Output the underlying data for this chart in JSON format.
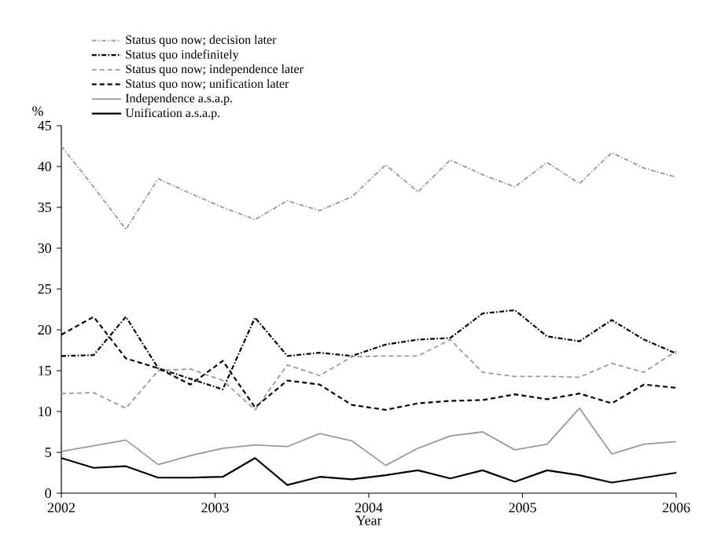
{
  "chart_data": {
    "type": "line",
    "xlabel": "Year",
    "ylabel": "%",
    "x": [
      2002,
      2002.21,
      2002.42,
      2002.63,
      2002.84,
      2003.05,
      2003.26,
      2003.47,
      2003.68,
      2003.89,
      2004.11,
      2004.32,
      2004.53,
      2004.74,
      2004.95,
      2005.16,
      2005.37,
      2005.58,
      2005.79,
      2006
    ],
    "xlim": [
      2002,
      2006
    ],
    "xticks": [
      2002,
      2003,
      2004,
      2005,
      2006
    ],
    "ylim": [
      0,
      45
    ],
    "yticks": [
      0,
      5,
      10,
      15,
      20,
      25,
      30,
      35,
      40,
      45
    ],
    "grid": false,
    "legend": "top left",
    "marker": "none",
    "series": [
      {
        "name": "Status quo now; decision later",
        "color": "#999999",
        "line_style": "dashdot",
        "values": [
          42.5,
          37.5,
          32.3,
          38.5,
          36.7,
          35.0,
          33.5,
          35.8,
          34.6,
          36.3,
          40.2,
          36.9,
          40.8,
          39.0,
          37.5,
          40.5,
          37.9,
          41.7,
          39.8,
          38.7
        ]
      },
      {
        "name": "Status quo indefinitely",
        "color": "#000000",
        "line_style": "dashdot",
        "values": [
          16.8,
          16.9,
          21.6,
          15.3,
          14.0,
          12.7,
          21.5,
          16.8,
          17.2,
          16.8,
          18.2,
          18.8,
          19.0,
          22.0,
          22.4,
          19.2,
          18.6,
          21.2,
          18.8,
          17.1
        ]
      },
      {
        "name": "Status quo now; independence later",
        "color": "#999999",
        "line_style": "dashed",
        "values": [
          12.2,
          12.3,
          10.4,
          15.0,
          15.2,
          13.8,
          10.2,
          15.7,
          14.4,
          16.7,
          16.8,
          16.8,
          18.8,
          14.8,
          14.3,
          14.3,
          14.2,
          15.9,
          14.8,
          17.4
        ]
      },
      {
        "name": "Status quo now; unification later",
        "color": "#000000",
        "line_style": "dashed",
        "values": [
          19.4,
          21.6,
          16.5,
          15.3,
          13.3,
          16.2,
          10.5,
          13.8,
          13.3,
          10.8,
          10.2,
          11.0,
          11.3,
          11.4,
          12.1,
          11.5,
          12.2,
          11.0,
          13.3,
          12.9
        ]
      },
      {
        "name": "Independence a.s.a.p.",
        "color": "#999999",
        "line_style": "solid",
        "values": [
          5.1,
          5.8,
          6.5,
          3.5,
          4.6,
          5.5,
          5.9,
          5.7,
          7.3,
          6.4,
          3.4,
          5.5,
          7.0,
          7.5,
          5.3,
          6.0,
          10.4,
          4.8,
          6.0,
          6.3
        ]
      },
      {
        "name": "Unification a.s.a.p.",
        "color": "#000000",
        "line_style": "solid",
        "values": [
          4.3,
          3.1,
          3.3,
          1.9,
          1.9,
          2.0,
          4.3,
          1.0,
          2.0,
          1.7,
          2.2,
          2.8,
          1.8,
          2.8,
          1.4,
          2.8,
          2.2,
          1.3,
          1.9,
          2.5
        ]
      }
    ]
  }
}
